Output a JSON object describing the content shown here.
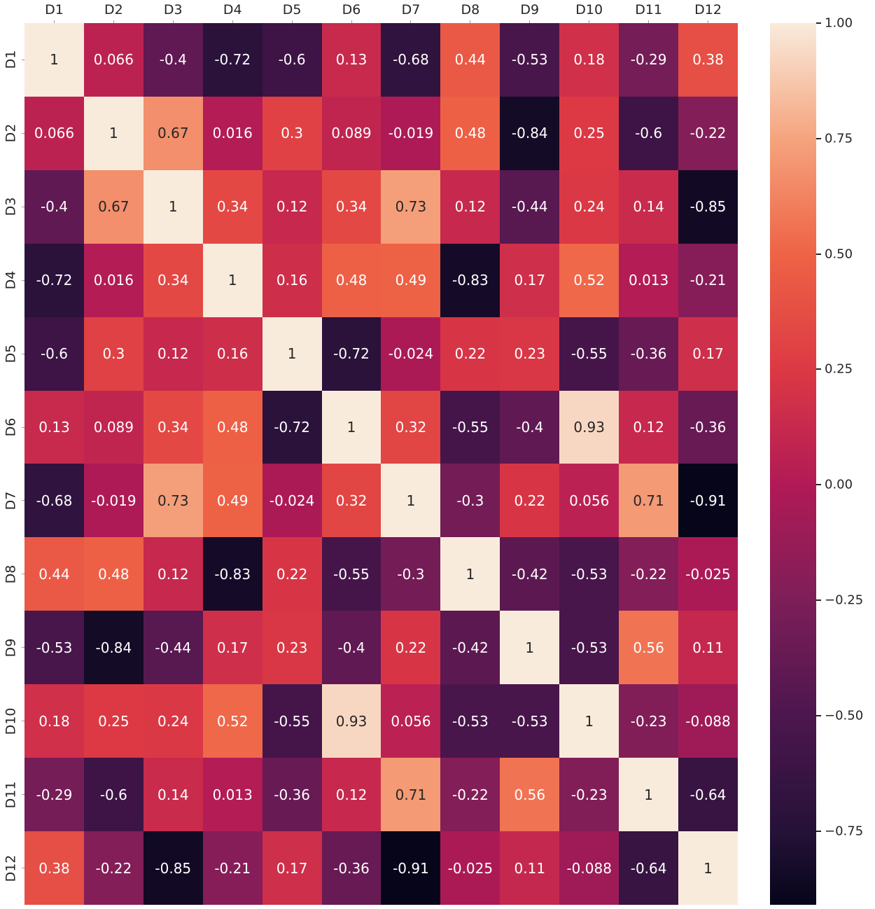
{
  "chart_data": {
    "type": "heatmap",
    "title": "",
    "xlabel": "",
    "ylabel": "",
    "categories": [
      "D1",
      "D2",
      "D3",
      "D4",
      "D5",
      "D6",
      "D7",
      "D8",
      "D9",
      "D10",
      "D11",
      "D12"
    ],
    "row_labels": [
      "D1",
      "D2",
      "D3",
      "D4",
      "D5",
      "D6",
      "D7",
      "D8",
      "D9",
      "D10",
      "D11",
      "D12"
    ],
    "col_labels": [
      "D1",
      "D2",
      "D3",
      "D4",
      "D5",
      "D6",
      "D7",
      "D8",
      "D9",
      "D10",
      "D11",
      "D12"
    ],
    "matrix": [
      [
        "1",
        "0.066",
        "-0.4",
        "-0.72",
        "-0.6",
        "0.13",
        "-0.68",
        "0.44",
        "-0.53",
        "0.18",
        "-0.29",
        "0.38"
      ],
      [
        "0.066",
        "1",
        "0.67",
        "0.016",
        "0.3",
        "0.089",
        "-0.019",
        "0.48",
        "-0.84",
        "0.25",
        "-0.6",
        "-0.22"
      ],
      [
        "-0.4",
        "0.67",
        "1",
        "0.34",
        "0.12",
        "0.34",
        "0.73",
        "0.12",
        "-0.44",
        "0.24",
        "0.14",
        "-0.85"
      ],
      [
        "-0.72",
        "0.016",
        "0.34",
        "1",
        "0.16",
        "0.48",
        "0.49",
        "-0.83",
        "0.17",
        "0.52",
        "0.013",
        "-0.21"
      ],
      [
        "-0.6",
        "0.3",
        "0.12",
        "0.16",
        "1",
        "-0.72",
        "-0.024",
        "0.22",
        "0.23",
        "-0.55",
        "-0.36",
        "0.17"
      ],
      [
        "0.13",
        "0.089",
        "0.34",
        "0.48",
        "-0.72",
        "1",
        "0.32",
        "-0.55",
        "-0.4",
        "0.93",
        "0.12",
        "-0.36"
      ],
      [
        "-0.68",
        "-0.019",
        "0.73",
        "0.49",
        "-0.024",
        "0.32",
        "1",
        "-0.3",
        "0.22",
        "0.056",
        "0.71",
        "-0.91"
      ],
      [
        "0.44",
        "0.48",
        "0.12",
        "-0.83",
        "0.22",
        "-0.55",
        "-0.3",
        "1",
        "-0.42",
        "-0.53",
        "-0.22",
        "-0.025"
      ],
      [
        "-0.53",
        "-0.84",
        "-0.44",
        "0.17",
        "0.23",
        "-0.4",
        "0.22",
        "-0.42",
        "1",
        "-0.53",
        "0.56",
        "0.11"
      ],
      [
        "0.18",
        "0.25",
        "0.24",
        "0.52",
        "-0.55",
        "0.93",
        "0.056",
        "-0.53",
        "-0.53",
        "1",
        "-0.23",
        "-0.088"
      ],
      [
        "-0.29",
        "-0.6",
        "0.14",
        "0.013",
        "-0.36",
        "0.12",
        "0.71",
        "-0.22",
        "0.56",
        "-0.23",
        "1",
        "-0.64"
      ],
      [
        "0.38",
        "-0.22",
        "-0.85",
        "-0.21",
        "0.17",
        "-0.36",
        "-0.91",
        "-0.025",
        "0.11",
        "-0.088",
        "-0.64",
        "1"
      ]
    ],
    "vmin": -0.91,
    "vmax": 1.0,
    "colorbar_ticks": [
      {
        "label": "1.00",
        "value": 1.0
      },
      {
        "label": "0.75",
        "value": 0.75
      },
      {
        "label": "0.50",
        "value": 0.5
      },
      {
        "label": "0.25",
        "value": 0.25
      },
      {
        "label": "0.00",
        "value": 0.0
      },
      {
        "label": "−0.25",
        "value": -0.25
      },
      {
        "label": "−0.50",
        "value": -0.5
      },
      {
        "label": "−0.75",
        "value": -0.75
      }
    ],
    "colormap": {
      "name": "rocket",
      "stops": [
        {
          "t": 0.0,
          "color": "#06051a"
        },
        {
          "t": 0.084,
          "color": "#251238"
        },
        {
          "t": 0.215,
          "color": "#4d164e"
        },
        {
          "t": 0.345,
          "color": "#7d1e58"
        },
        {
          "t": 0.476,
          "color": "#b11a56"
        },
        {
          "t": 0.607,
          "color": "#dc3944"
        },
        {
          "t": 0.738,
          "color": "#ee6345"
        },
        {
          "t": 0.869,
          "color": "#f5a47e"
        },
        {
          "t": 1.0,
          "color": "#f9ebdc"
        }
      ]
    },
    "annotation_text_colors": {
      "light": "#ffffff",
      "dark": "#262626"
    },
    "luminance_threshold": 0.38,
    "grid": false,
    "legend_position": "right-colorbar"
  }
}
